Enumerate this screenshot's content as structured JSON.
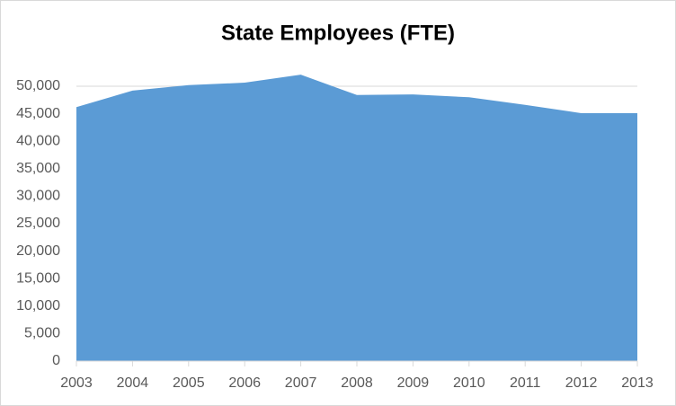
{
  "chart_data": {
    "type": "area",
    "title": "State Employees (FTE)",
    "categories": [
      "2003",
      "2004",
      "2005",
      "2006",
      "2007",
      "2008",
      "2009",
      "2010",
      "2011",
      "2012",
      "2013"
    ],
    "values": [
      46200,
      49200,
      50200,
      50650,
      52100,
      48400,
      48500,
      48000,
      46600,
      45100,
      45100
    ],
    "color": "#5b9bd5",
    "ylim": [
      0,
      55000
    ],
    "yticks": [
      0,
      {
        "value": 5000,
        "label": "5,000"
      },
      {
        "value": 10000,
        "label": "10,000"
      },
      {
        "value": 15000,
        "label": "15,000"
      },
      {
        "value": 20000,
        "label": "20,000"
      },
      {
        "value": 25000,
        "label": "25,000"
      },
      {
        "value": 30000,
        "label": "30,000"
      },
      {
        "value": 35000,
        "label": "35,000"
      },
      {
        "value": 40000,
        "label": "40,000"
      },
      {
        "value": 45000,
        "label": "45,000"
      },
      {
        "value": 50000,
        "label": "50,000"
      }
    ],
    "grid": true
  }
}
